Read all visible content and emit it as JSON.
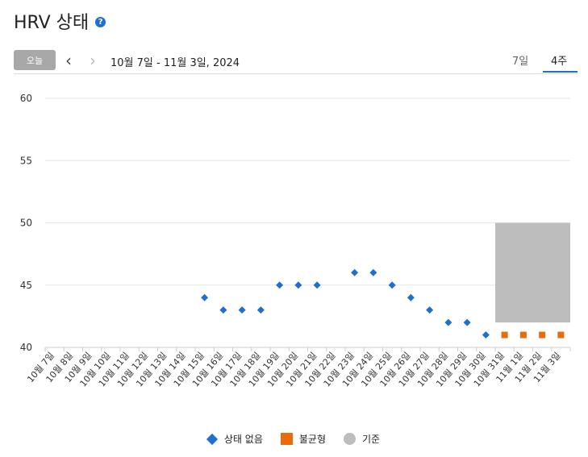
{
  "header": {
    "title": "HRV 상태",
    "help_icon": "?"
  },
  "toolbar": {
    "today_label": "오늘",
    "prev_icon": "‹",
    "next_icon": "›",
    "date_range": "10월 7일 - 11월 3일, 2024",
    "tabs": [
      {
        "label": "7일",
        "active": false
      },
      {
        "label": "4주",
        "active": true
      }
    ]
  },
  "legend": {
    "items": [
      "상태 없음",
      "불균형",
      "기준"
    ]
  },
  "colors": {
    "no_status": "#1f6fd1",
    "unbalanced": "#e86b0c",
    "baseline": "#bdbdbd",
    "accent": "#1f6fd1"
  },
  "chart_data": {
    "type": "scatter",
    "categories": [
      "10월 7일",
      "10월 8일",
      "10월 9일",
      "10월 10일",
      "10월 11일",
      "10월 12일",
      "10월 13일",
      "10월 14일",
      "10월 15일",
      "10월 16일",
      "10월 17일",
      "10월 18일",
      "10월 19일",
      "10월 20일",
      "10월 21일",
      "10월 22일",
      "10월 23일",
      "10월 24일",
      "10월 25일",
      "10월 26일",
      "10월 27일",
      "10월 28일",
      "10월 29일",
      "10월 30일",
      "10월 31일",
      "11월 1일",
      "11월 2일",
      "11월 3일"
    ],
    "ylim": [
      40,
      60
    ],
    "yticks": [
      40,
      45,
      50,
      55,
      60
    ],
    "grid": true,
    "legend_position": "bottom",
    "series": [
      {
        "name": "상태 없음",
        "marker": "diamond",
        "values": [
          null,
          null,
          null,
          null,
          null,
          null,
          null,
          null,
          44,
          43,
          43,
          43,
          45,
          45,
          45,
          null,
          46,
          46,
          45,
          44,
          43,
          42,
          42,
          41,
          null,
          null,
          null,
          null
        ]
      },
      {
        "name": "불균형",
        "marker": "square",
        "values": [
          null,
          null,
          null,
          null,
          null,
          null,
          null,
          null,
          null,
          null,
          null,
          null,
          null,
          null,
          null,
          null,
          null,
          null,
          null,
          null,
          null,
          null,
          null,
          null,
          41,
          41,
          41,
          41
        ]
      }
    ],
    "baseline_band": {
      "name": "기준",
      "from": "10월 31일",
      "to": "11월 3일",
      "low": 42,
      "high": 50
    }
  }
}
